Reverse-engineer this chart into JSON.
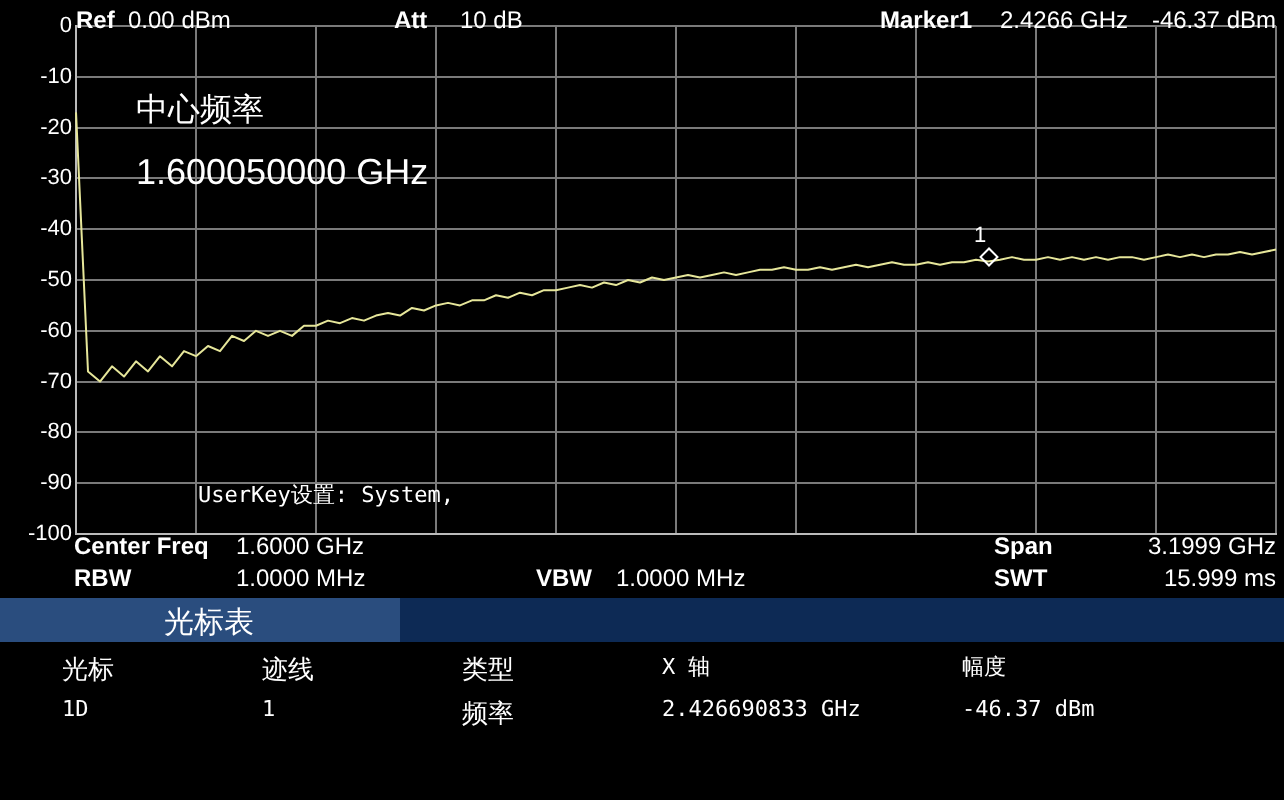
{
  "chart_data": {
    "type": "line",
    "categories": [
      null,
      null,
      null,
      null,
      null,
      null,
      null,
      null,
      null,
      null,
      null,
      null,
      null,
      null,
      null,
      null,
      null,
      null,
      null,
      null,
      null,
      null,
      null,
      null,
      null,
      null,
      null,
      null,
      null,
      null,
      null,
      null,
      null,
      null,
      null,
      null,
      null,
      null,
      null,
      null,
      null,
      null,
      null,
      null,
      null,
      null,
      null,
      null,
      null,
      null,
      null,
      null,
      null,
      null,
      null,
      null,
      null,
      null,
      null,
      null,
      null,
      null,
      null,
      null,
      null,
      null,
      null,
      null,
      null,
      null,
      null,
      null,
      null,
      null,
      null,
      null,
      null,
      null,
      null,
      null,
      null,
      null,
      null,
      null,
      null,
      null,
      null,
      null,
      null,
      null,
      null,
      null,
      null,
      null,
      null,
      null,
      null,
      null,
      null,
      null,
      null
    ],
    "ylim": [
      -100,
      0
    ],
    "yticks": [
      0,
      -10,
      -20,
      -30,
      -40,
      -50,
      -60,
      -70,
      -80,
      -90,
      -100
    ],
    "grid": true,
    "tick_labels": "y",
    "series": [
      {
        "color": "#e6e69a",
        "values": [
          -17,
          -68,
          -70,
          -67,
          -69,
          -66,
          -68,
          -65,
          -67,
          -64,
          -65,
          -63,
          -64,
          -61,
          -62,
          -60,
          -61,
          -60,
          -61,
          -59,
          -59,
          -58,
          -58.5,
          -57.5,
          -58,
          -57,
          -56.5,
          -57,
          -55.5,
          -56,
          -55,
          -54.5,
          -55,
          -54,
          -54,
          -53,
          -53.5,
          -52.5,
          -53,
          -52,
          -52,
          -51.5,
          -51,
          -51.5,
          -50.5,
          -51,
          -50,
          -50.5,
          -49.5,
          -50,
          -49.5,
          -49,
          -49.5,
          -49,
          -48.5,
          -49,
          -48.5,
          -48,
          -48,
          -47.5,
          -48,
          -48,
          -47.5,
          -48,
          -47.5,
          -47,
          -47.5,
          -47,
          -46.5,
          -47,
          -47,
          -46.5,
          -47,
          -46.5,
          -46.5,
          -46,
          -46.37,
          -46,
          -45.5,
          -46,
          -46,
          -45.5,
          -46,
          -45.5,
          -46,
          -45.5,
          -46,
          -45.5,
          -45.5,
          -46,
          -45.5,
          -45,
          -45.5,
          -45,
          -45.5,
          -45,
          -45,
          -44.5,
          -45,
          -44.5,
          -44
        ]
      }
    ],
    "annotations": [
      "1",
      "Ref",
      "0.00 dBm",
      "Att",
      "10 dB",
      "Marker1",
      "2.4266 GHz",
      "-46.37 dBm",
      "中心频率",
      "1.600050000 GHz",
      "UserKey设置:   System,",
      "Center Freq",
      "1.6000 GHz",
      "RBW",
      "1.0000 MHz",
      "VBW",
      "1.0000 MHz",
      "Span",
      "3.1999 GHz",
      "SWT",
      "15.999 ms",
      "光标表",
      "光标",
      "迹线",
      "类型",
      "X 轴",
      "幅度",
      "1D",
      "1",
      "频率",
      "2.426690833 GHz",
      "-46.37 dBm"
    ]
  }
}
